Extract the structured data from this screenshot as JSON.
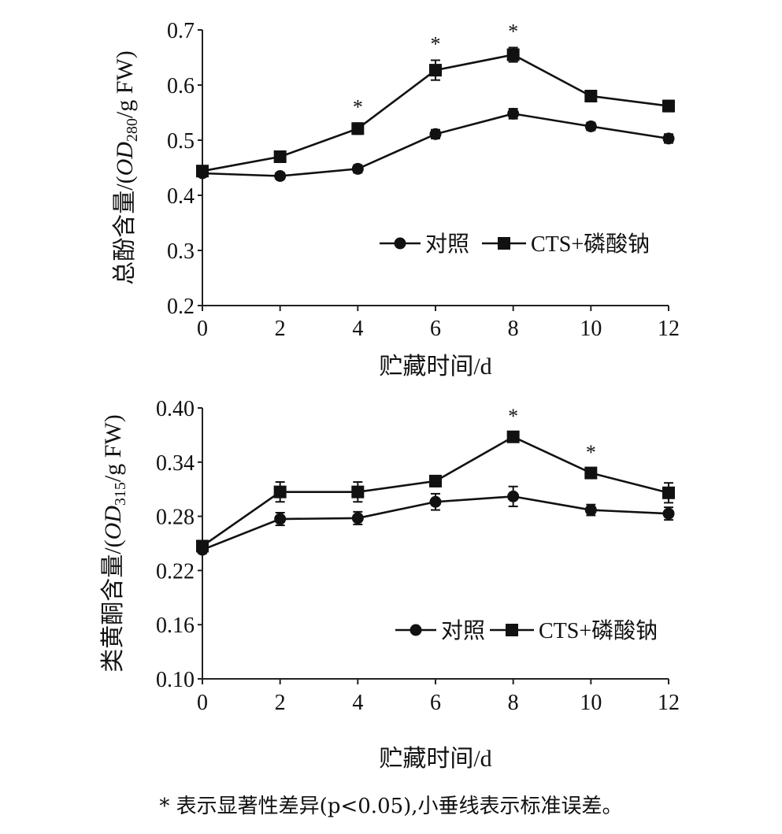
{
  "chart_data": [
    {
      "type": "line",
      "x": [
        0,
        2,
        4,
        6,
        8,
        10,
        12
      ],
      "xlabel": "贮藏时间/d",
      "ylabel_text": "总酚含量/(",
      "ylabel_italic": "OD",
      "ylabel_sub": "280",
      "ylabel_tail": "/g FW)",
      "ylim": [
        0.2,
        0.7
      ],
      "yticks": [
        "0.2",
        "0.3",
        "0.4",
        "0.5",
        "0.6",
        "0.7"
      ],
      "xticks": [
        "0",
        "2",
        "4",
        "6",
        "8",
        "10",
        "12"
      ],
      "legend_position": "lower-right",
      "series": [
        {
          "name": "对照",
          "marker": "circle",
          "values": [
            0.44,
            0.435,
            0.448,
            0.511,
            0.548,
            0.525,
            0.503
          ],
          "errors": [
            0.006,
            0.006,
            0.007,
            0.008,
            0.009,
            0.007,
            0.008
          ]
        },
        {
          "name": "CTS+磷酸钠",
          "marker": "square",
          "values": [
            0.444,
            0.47,
            0.521,
            0.627,
            0.655,
            0.58,
            0.562
          ],
          "errors": [
            0.007,
            0.009,
            0.01,
            0.018,
            0.013,
            0.01,
            0.01
          ]
        }
      ],
      "significant_at": [
        "4",
        "6",
        "8"
      ],
      "significance_mark": "*"
    },
    {
      "type": "line",
      "x": [
        0,
        2,
        4,
        6,
        8,
        10,
        12
      ],
      "xlabel": "贮藏时间/d",
      "ylabel_text": "类黄酮含量/(",
      "ylabel_italic": "OD",
      "ylabel_sub": "315",
      "ylabel_tail": "/g FW)",
      "ylim": [
        0.1,
        0.4
      ],
      "yticks": [
        "0.10",
        "0.16",
        "0.22",
        "0.28",
        "0.34",
        "0.40"
      ],
      "xticks": [
        "0",
        "2",
        "4",
        "6",
        "8",
        "10",
        "12"
      ],
      "legend_position": "lower-right",
      "series": [
        {
          "name": "对照",
          "marker": "circle",
          "values": [
            0.243,
            0.277,
            0.278,
            0.296,
            0.302,
            0.287,
            0.283
          ],
          "errors": [
            0.004,
            0.007,
            0.007,
            0.009,
            0.011,
            0.006,
            0.007
          ]
        },
        {
          "name": "CTS+磷酸钠",
          "marker": "square",
          "values": [
            0.247,
            0.307,
            0.307,
            0.319,
            0.368,
            0.328,
            0.306
          ],
          "errors": [
            0.004,
            0.011,
            0.011,
            0.006,
            0.005,
            0.005,
            0.011
          ]
        }
      ],
      "significant_at": [
        "8",
        "10"
      ],
      "significance_mark": "*"
    }
  ],
  "caption": "* 表示显著性差异(p<0.05),小垂线表示标准误差。"
}
